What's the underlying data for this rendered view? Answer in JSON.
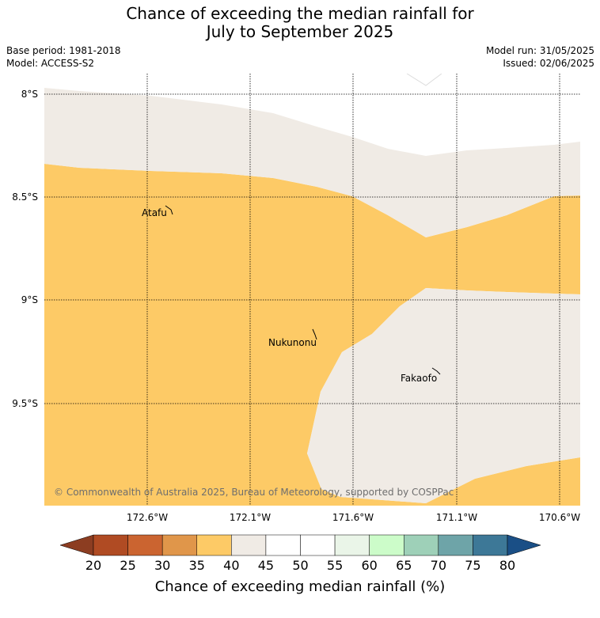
{
  "title": {
    "line1": "Chance of exceeding the median rainfall for",
    "line2": "July to September 2025"
  },
  "meta": {
    "base_period": "Base period: 1981-2018",
    "model": "Model: ACCESS-S2",
    "model_run": "Model run: 31/05/2025",
    "issued": "Issued: 02/06/2025"
  },
  "map": {
    "lon_labels": [
      "172.6°W",
      "172.1°W",
      "171.6°W",
      "171.1°W",
      "170.6°W"
    ],
    "lat_labels": [
      "8°S",
      "8.5°S",
      "9°S",
      "9.5°S"
    ],
    "places": [
      {
        "name": "Atafu"
      },
      {
        "name": "Nukunonu"
      },
      {
        "name": "Fakaofo"
      }
    ],
    "regions": [
      {
        "category": "35-40",
        "color": "#fdca66"
      },
      {
        "category": "40-45",
        "color": "#f0ebe5"
      }
    ],
    "copyright": "© Commonwealth of Australia 2025, Bureau of Meteorology, supported by COSPPac"
  },
  "colorbar": {
    "title": "Chance of exceeding median rainfall (%)",
    "ticks": [
      "20",
      "25",
      "30",
      "35",
      "40",
      "45",
      "50",
      "55",
      "60",
      "65",
      "70",
      "75",
      "80"
    ],
    "under_color": "#8c3d21",
    "over_color": "#1a4f86",
    "colors": [
      "#b04b23",
      "#cb6430",
      "#e0964a",
      "#fdca66",
      "#f0ebe5",
      "#ffffff",
      "#ffffff",
      "#eaf5e8",
      "#ccfcc9",
      "#9ed0b8",
      "#6ea4a8",
      "#3d7897"
    ]
  }
}
